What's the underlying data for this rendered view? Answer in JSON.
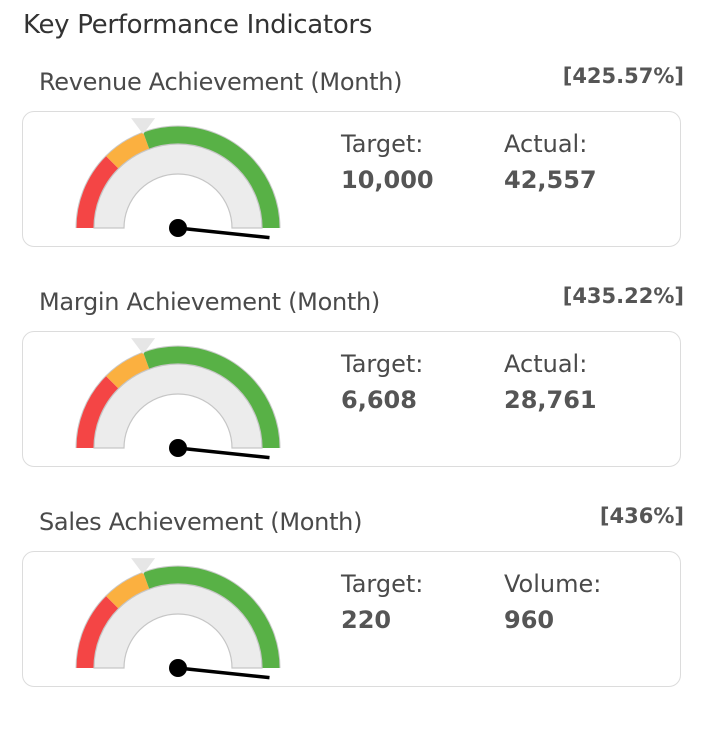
{
  "page": {
    "title": "Key Performance Indicators"
  },
  "colors": {
    "red": "#f44545",
    "orange": "#fbb040",
    "green": "#58b146",
    "track": "#ececec",
    "needle": "#000000",
    "pointer": "#e6e6e6"
  },
  "kpis": [
    {
      "title": "Revenue Achievement (Month)",
      "percent": "[425.57%]",
      "target_label": "Target:",
      "target_value": "10,000",
      "actual_label": "Actual:",
      "actual_value": "42,557",
      "gauge_value_pct": 425.57
    },
    {
      "title": "Margin Achievement (Month)",
      "percent": "[435.22%]",
      "target_label": "Target:",
      "target_value": "6,608",
      "actual_label": "Actual:",
      "actual_value": "28,761",
      "gauge_value_pct": 435.22
    },
    {
      "title": "Sales Achievement (Month)",
      "percent": "[436%]",
      "target_label": "Target:",
      "target_value": "220",
      "actual_label": "Volume:",
      "actual_value": "960",
      "gauge_value_pct": 436
    }
  ]
}
